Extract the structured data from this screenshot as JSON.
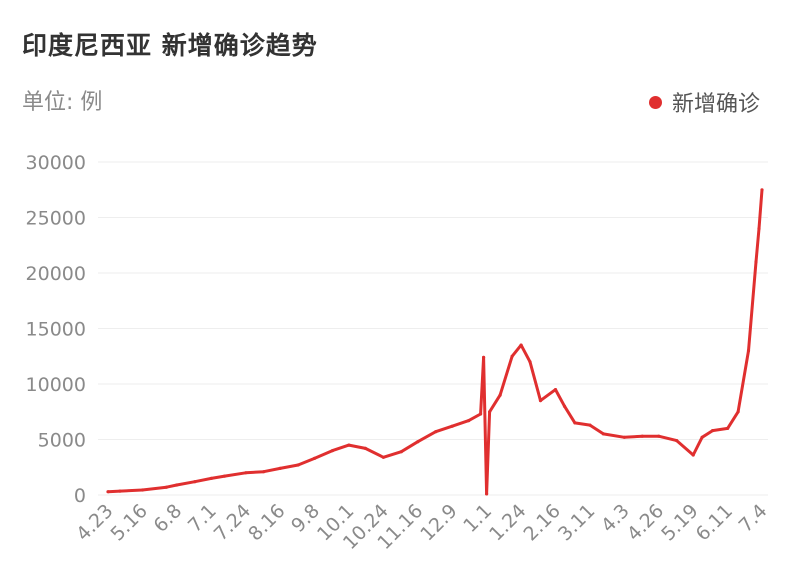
{
  "title": "印度尼西亚 新增确诊趋势",
  "unit_label": "单位: 例",
  "colors": {
    "series": "#e02f2f",
    "grid": "#eeeeee",
    "text": "#8a8a8a"
  },
  "chart_data": {
    "type": "line",
    "title": "印度尼西亚 新增确诊趋势",
    "ylabel": "单位: 例",
    "legend_position": "top-right",
    "grid": true,
    "ylim": [
      0,
      30000
    ],
    "yticks": [
      0,
      5000,
      10000,
      15000,
      20000,
      25000,
      30000
    ],
    "xtick_labels": [
      "4.23",
      "5.16",
      "6.8",
      "7.1",
      "7.24",
      "8.16",
      "9.8",
      "10.1",
      "10.24",
      "11.16",
      "12.9",
      "1.1",
      "1.24",
      "2.16",
      "3.11",
      "4.3",
      "4.26",
      "5.19",
      "6.11",
      "7.4"
    ],
    "series": [
      {
        "name": "新增确诊",
        "x": [
          "4.23",
          "5.1",
          "5.16",
          "6.1",
          "6.8",
          "6.20",
          "7.1",
          "7.10",
          "7.24",
          "8.5",
          "8.16",
          "8.28",
          "9.8",
          "9.20",
          "10.1",
          "10.12",
          "10.24",
          "11.5",
          "11.16",
          "11.28",
          "12.9",
          "12.20",
          "12.28",
          "12.30",
          "1.1",
          "1.3",
          "1.10",
          "1.18",
          "1.24",
          "1.30",
          "2.6",
          "2.16",
          "2.22",
          "3.1",
          "3.11",
          "3.20",
          "4.3",
          "4.15",
          "4.26",
          "5.8",
          "5.19",
          "5.25",
          "6.1",
          "6.11",
          "6.18",
          "6.25",
          "6.30",
          "7.2",
          "7.4"
        ],
        "values": [
          300,
          350,
          450,
          700,
          900,
          1200,
          1500,
          1700,
          2000,
          2100,
          2400,
          2700,
          3300,
          4000,
          4500,
          4200,
          3400,
          3900,
          4800,
          5700,
          6200,
          6700,
          7300,
          12400,
          100,
          7500,
          9000,
          12500,
          13500,
          12000,
          8500,
          9500,
          8000,
          6500,
          6300,
          5500,
          5200,
          5300,
          5300,
          4900,
          3600,
          5200,
          5800,
          6000,
          7500,
          13000,
          21000,
          24000,
          27500
        ]
      }
    ]
  }
}
